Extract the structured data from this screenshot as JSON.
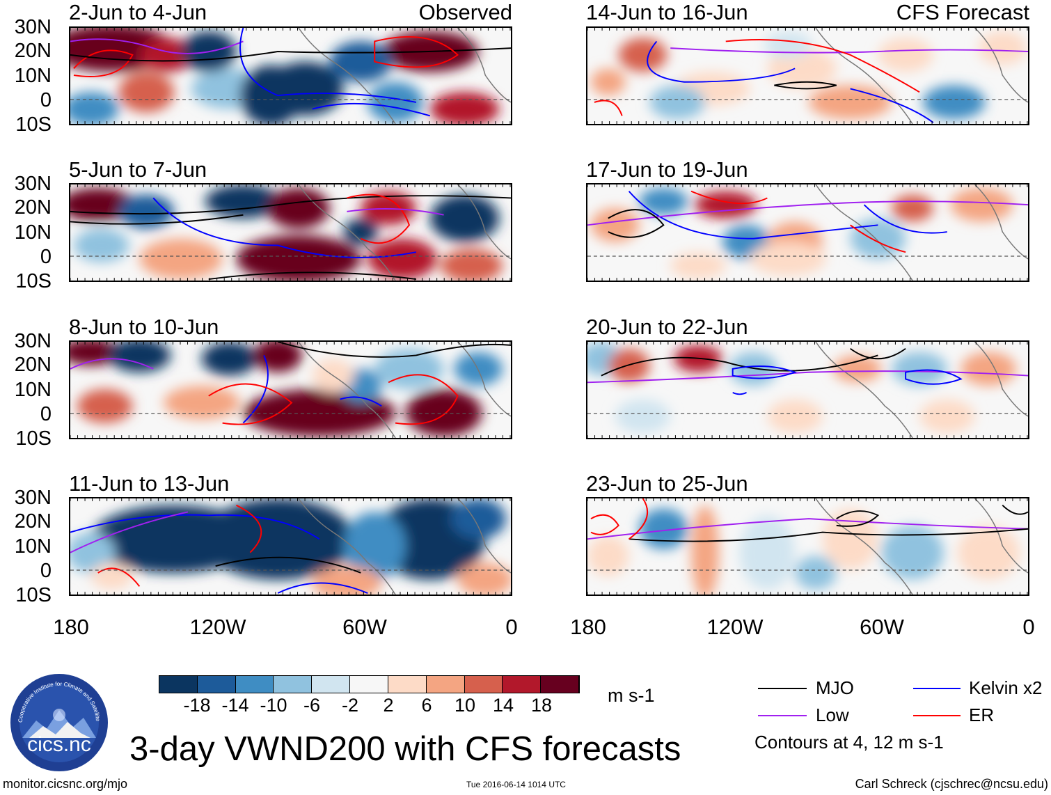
{
  "columns": [
    {
      "tag": "Observed",
      "panels": [
        {
          "date": "2-Jun to 4-Jun",
          "style": "obs1"
        },
        {
          "date": "5-Jun to 7-Jun",
          "style": "obs2"
        },
        {
          "date": "8-Jun to 10-Jun",
          "style": "obs3"
        },
        {
          "date": "11-Jun to 13-Jun",
          "style": "obs4"
        }
      ]
    },
    {
      "tag": "CFS Forecast",
      "panels": [
        {
          "date": "14-Jun to 16-Jun",
          "style": "fc1"
        },
        {
          "date": "17-Jun to 19-Jun",
          "style": "fc2"
        },
        {
          "date": "20-Jun to 22-Jun",
          "style": "fc3"
        },
        {
          "date": "23-Jun to 25-Jun",
          "style": "fc4"
        }
      ]
    }
  ],
  "lat_labels": [
    "30N",
    "20N",
    "10N",
    "0",
    "10S"
  ],
  "lon_labels": [
    "180",
    "120W",
    "60W",
    "0"
  ],
  "colorbar": {
    "colors": [
      "#0b3560",
      "#1d5b9a",
      "#3f8dc3",
      "#90c2df",
      "#d1e5f0",
      "#f7f7f7",
      "#fddbc7",
      "#f4a582",
      "#d6604d",
      "#b2182b",
      "#67001f"
    ],
    "labels": [
      "-18",
      "-14",
      "-10",
      "-6",
      "-2",
      "2",
      "6",
      "10",
      "14",
      "18"
    ],
    "units": "m s-1"
  },
  "legend": {
    "items": [
      {
        "label": "MJO",
        "color": "#000000"
      },
      {
        "label": "Kelvin x2",
        "color": "#0000ff"
      },
      {
        "label": "Low",
        "color": "#a020f0"
      },
      {
        "label": "ER",
        "color": "#ff0000"
      }
    ],
    "note": "Contours at 4, 12 m s-1"
  },
  "logo": {
    "text": "cics.nc",
    "ring_text": "Cooperative Institute for Climate and Satellites"
  },
  "title": "3-day VWND200 with CFS forecasts",
  "footer": {
    "left": "monitor.cicsnc.org/mjo",
    "center": "Tue 2016-06-14 1014 UTC",
    "right": "Carl Schreck (cjschrec@ncsu.edu)"
  }
}
